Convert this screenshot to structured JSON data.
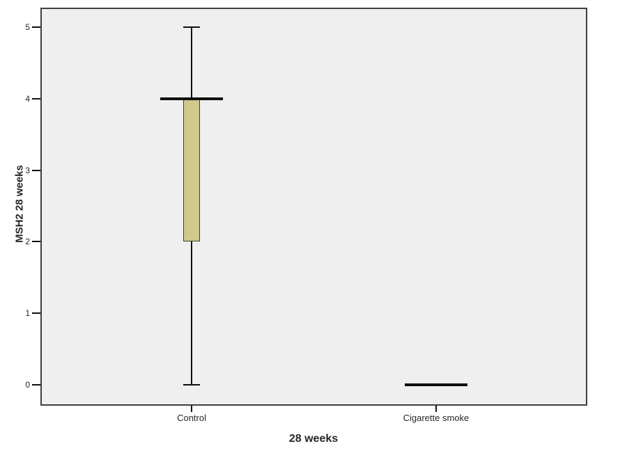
{
  "page": {
    "background": "#ffffff"
  },
  "chart_data": {
    "type": "box",
    "title": "",
    "xlabel": "28 weeks",
    "ylabel": "MSH2 28 weeks",
    "categories": [
      "Control",
      "Cigarette smoke"
    ],
    "y_ticks": [
      0,
      1,
      2,
      3,
      4,
      5
    ],
    "ylim": [
      -0.28,
      5.27
    ],
    "grid": false,
    "legend": "none",
    "boxes": [
      {
        "category": "Control",
        "whisker_low": 0,
        "q1": 2,
        "median": 4,
        "q3": 4,
        "whisker_high": 5
      },
      {
        "category": "Cigarette smoke",
        "whisker_low": 0,
        "q1": 0,
        "median": 0,
        "q3": 0,
        "whisker_high": 0
      }
    ],
    "colors": {
      "plot_background": "#efefef",
      "plot_border": "#3f3f3f",
      "box_fill": "#cfc98e",
      "box_border": "#3e3d2c",
      "line": "#0f0f0f",
      "text": "#26262c"
    }
  }
}
